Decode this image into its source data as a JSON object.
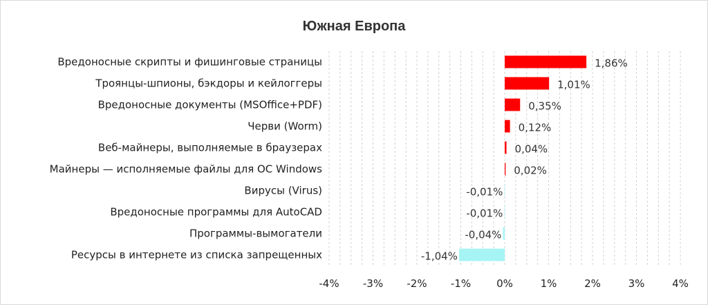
{
  "chart_data": {
    "type": "bar",
    "orientation": "horizontal",
    "title": "Южная Европа",
    "categories": [
      "Вредоносные скрипты и фишинговые страницы",
      "Троянцы-шпионы, бэкдоры и кейлоггеры",
      "Вредоносные документы (MSOffice+PDF)",
      "Черви (Worm)",
      "Веб-майнеры, выполняемые в браузерах",
      "Майнеры — исполняемые файлы для ОС Windows",
      "Вирусы (Virus)",
      "Вредоносные программы для AutoCAD",
      "Программы-вымогатели",
      "Ресурсы в интернете из списка запрещенных"
    ],
    "values": [
      1.86,
      1.01,
      0.35,
      0.12,
      0.04,
      0.02,
      -0.01,
      -0.01,
      -0.04,
      -1.04
    ],
    "value_labels": [
      "1,86%",
      "1,01%",
      "0,35%",
      "0,12%",
      "0,04%",
      "0,02%",
      "-0,01%",
      "-0,01%",
      "-0,04%",
      "-1,04%"
    ],
    "xlim": [
      -4,
      4
    ],
    "x_ticks": [
      -4,
      -3,
      -2,
      -1,
      0,
      1,
      2,
      3,
      4
    ],
    "x_tick_labels": [
      "-4%",
      "-3%",
      "-2%",
      "-1%",
      "0%",
      "1%",
      "2%",
      "3%",
      "4%"
    ],
    "grid": true,
    "positive_color": "#ff0000",
    "negative_color": "#a6f4f4",
    "legend": "none"
  }
}
